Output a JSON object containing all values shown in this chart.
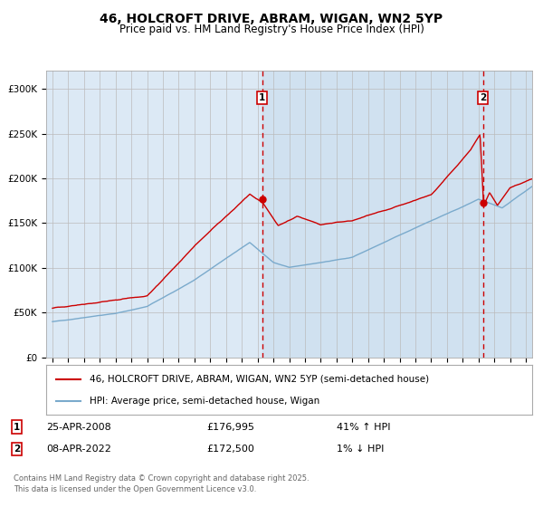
{
  "title1": "46, HOLCROFT DRIVE, ABRAM, WIGAN, WN2 5YP",
  "title2": "Price paid vs. HM Land Registry's House Price Index (HPI)",
  "plot_bg_color": "#dce9f5",
  "outer_bg_color": "#ffffff",
  "red_line_color": "#cc0000",
  "blue_line_color": "#7aaacc",
  "marker_color": "#cc0000",
  "vline_color": "#cc0000",
  "annotation1": {
    "label": "1",
    "date": "25-APR-2008",
    "price": "£176,995",
    "pct": "41% ↑ HPI",
    "x_year": 2008.3
  },
  "annotation2": {
    "label": "2",
    "date": "08-APR-2022",
    "price": "£172,500",
    "pct": "1% ↓ HPI",
    "x_year": 2022.28
  },
  "ylim": [
    0,
    320000
  ],
  "xlim_start": 1994.6,
  "xlim_end": 2025.4,
  "yticks": [
    0,
    50000,
    100000,
    150000,
    200000,
    250000,
    300000
  ],
  "ytick_labels": [
    "£0",
    "£50K",
    "£100K",
    "£150K",
    "£200K",
    "£250K",
    "£300K"
  ],
  "xticks": [
    1995,
    1996,
    1997,
    1998,
    1999,
    2000,
    2001,
    2002,
    2003,
    2004,
    2005,
    2006,
    2007,
    2008,
    2009,
    2010,
    2011,
    2012,
    2013,
    2014,
    2015,
    2016,
    2017,
    2018,
    2019,
    2020,
    2021,
    2022,
    2023,
    2024,
    2025
  ],
  "legend_red": "46, HOLCROFT DRIVE, ABRAM, WIGAN, WN2 5YP (semi-detached house)",
  "legend_blue": "HPI: Average price, semi-detached house, Wigan",
  "footnote": "Contains HM Land Registry data © Crown copyright and database right 2025.\nThis data is licensed under the Open Government Licence v3.0.",
  "shaded_region_start": 2008.3,
  "shaded_region_end": 2025.4,
  "ann1_marker_y": 176995,
  "ann2_marker_y": 172500
}
